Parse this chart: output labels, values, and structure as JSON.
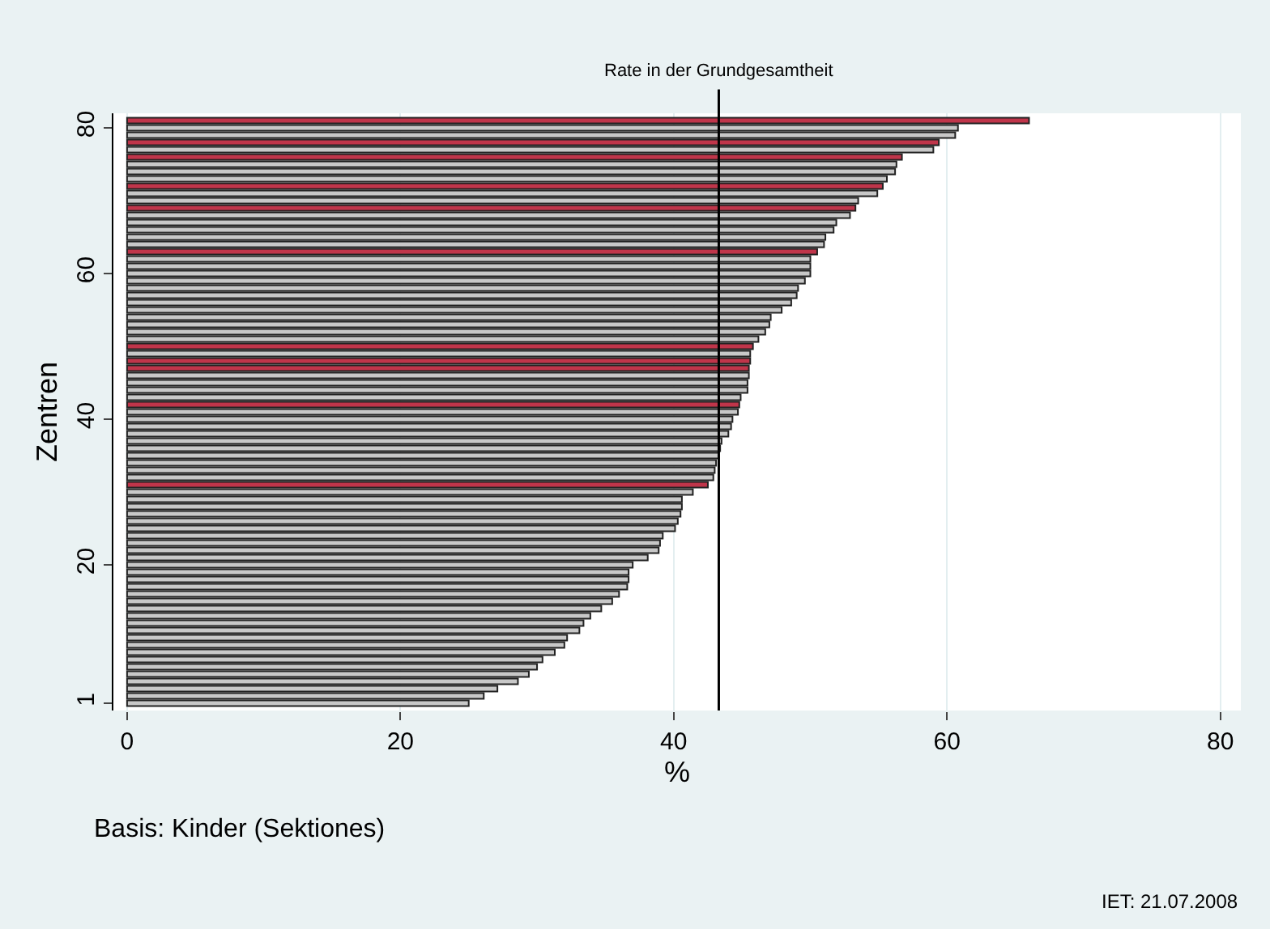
{
  "chart_data": {
    "type": "bar",
    "orientation": "horizontal",
    "xlabel": "%",
    "ylabel": "Zentren",
    "x": [
      1,
      2,
      3,
      4,
      5,
      6,
      7,
      8,
      9,
      10,
      11,
      12,
      13,
      14,
      15,
      16,
      17,
      18,
      19,
      20,
      21,
      22,
      23,
      24,
      25,
      26,
      27,
      28,
      29,
      30,
      31,
      32,
      33,
      34,
      35,
      36,
      37,
      38,
      39,
      40,
      41,
      42,
      43,
      44,
      45,
      46,
      47,
      48,
      49,
      50,
      51,
      52,
      53,
      54,
      55,
      56,
      57,
      58,
      59,
      60,
      61,
      62,
      63,
      64,
      65,
      66,
      67,
      68,
      69,
      70,
      71,
      72,
      73,
      74,
      75,
      76,
      77,
      78,
      79,
      80,
      81
    ],
    "values": [
      25.0,
      26.1,
      27.1,
      28.6,
      29.4,
      30.0,
      30.4,
      31.3,
      32.0,
      32.2,
      33.1,
      33.4,
      33.9,
      34.7,
      35.5,
      36.0,
      36.6,
      36.7,
      36.7,
      37.0,
      38.1,
      38.9,
      39.0,
      39.2,
      40.1,
      40.3,
      40.5,
      40.6,
      40.6,
      41.4,
      42.5,
      42.9,
      43.0,
      43.1,
      43.3,
      43.4,
      43.5,
      44.0,
      44.2,
      44.3,
      44.7,
      44.8,
      44.9,
      45.4,
      45.4,
      45.5,
      45.5,
      45.6,
      45.6,
      45.8,
      46.2,
      46.7,
      47.0,
      47.1,
      47.9,
      48.6,
      49.0,
      49.1,
      49.6,
      50.0,
      50.0,
      50.0,
      50.5,
      51.0,
      51.1,
      51.7,
      51.9,
      52.9,
      53.3,
      53.5,
      54.9,
      55.3,
      55.6,
      56.2,
      56.3,
      56.7,
      59.0,
      59.4,
      60.6,
      60.8,
      66.0
    ],
    "colors": [
      "#c8c8c8",
      "#c8c8c8",
      "#c8c8c8",
      "#c8c8c8",
      "#c8c8c8",
      "#c8c8c8",
      "#c8c8c8",
      "#c8c8c8",
      "#c8c8c8",
      "#c8c8c8",
      "#c8c8c8",
      "#c8c8c8",
      "#c8c8c8",
      "#c8c8c8",
      "#c8c8c8",
      "#c8c8c8",
      "#c8c8c8",
      "#c8c8c8",
      "#c8c8c8",
      "#c8c8c8",
      "#c8c8c8",
      "#c8c8c8",
      "#c8c8c8",
      "#c8c8c8",
      "#c8c8c8",
      "#c8c8c8",
      "#c8c8c8",
      "#c8c8c8",
      "#c8c8c8",
      "#c8c8c8",
      "#c0354a",
      "#c8c8c8",
      "#c8c8c8",
      "#c8c8c8",
      "#c8c8c8",
      "#c8c8c8",
      "#c8c8c8",
      "#c8c8c8",
      "#c8c8c8",
      "#c8c8c8",
      "#c8c8c8",
      "#c0354a",
      "#c8c8c8",
      "#c8c8c8",
      "#c8c8c8",
      "#c8c8c8",
      "#c0354a",
      "#c0354a",
      "#c8c8c8",
      "#c0354a",
      "#c8c8c8",
      "#c8c8c8",
      "#c8c8c8",
      "#c8c8c8",
      "#c8c8c8",
      "#c8c8c8",
      "#c8c8c8",
      "#c8c8c8",
      "#c8c8c8",
      "#c8c8c8",
      "#c8c8c8",
      "#c8c8c8",
      "#c0354a",
      "#c8c8c8",
      "#c8c8c8",
      "#c8c8c8",
      "#c8c8c8",
      "#c8c8c8",
      "#c0354a",
      "#c8c8c8",
      "#c8c8c8",
      "#c0354a",
      "#c8c8c8",
      "#c8c8c8",
      "#c8c8c8",
      "#c0354a",
      "#c8c8c8",
      "#c0354a",
      "#c8c8c8",
      "#c8c8c8",
      "#c0354a"
    ],
    "xlim": [
      -1,
      81.5
    ],
    "xticks": [
      0,
      20,
      40,
      60,
      80
    ],
    "ylim": [
      0,
      82
    ],
    "yticks": [
      1,
      20,
      40,
      60,
      80
    ],
    "grid": "x",
    "ref_lines": [
      {
        "axis": "x",
        "value": 43.3,
        "label": "Rate in der Grundgesamtheit",
        "color": "#000000"
      }
    ],
    "annotations": [
      "Basis: Kinder (Sektiones)",
      "IET: 21.07.2008"
    ]
  }
}
